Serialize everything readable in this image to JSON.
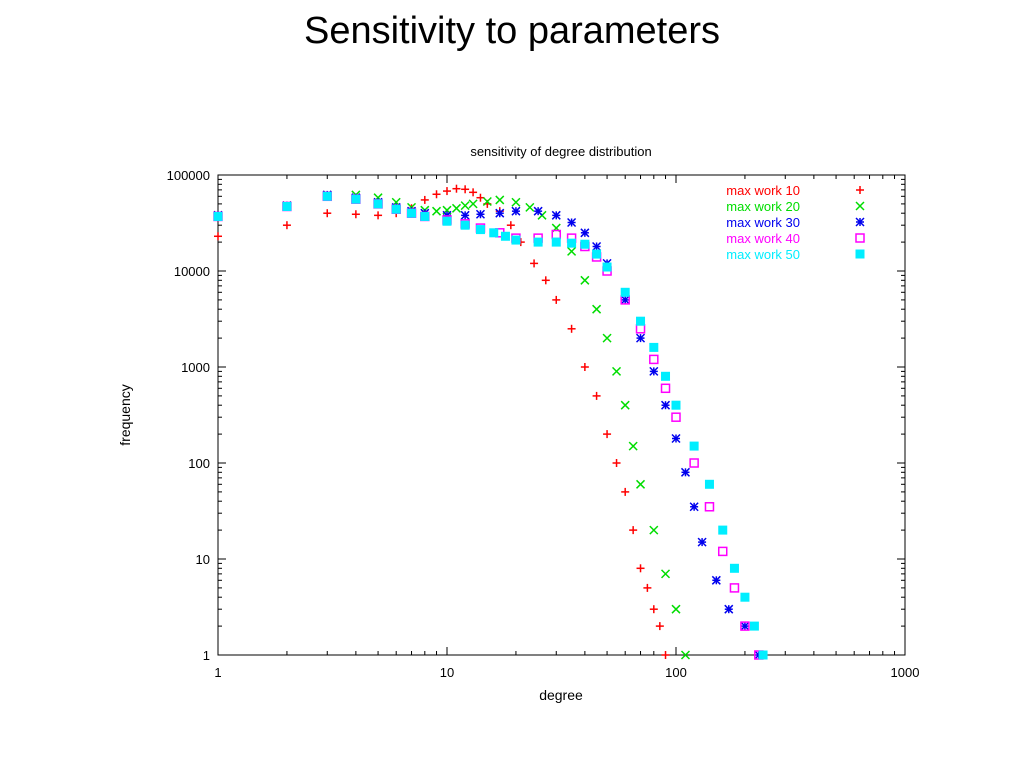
{
  "slide": {
    "title": "Sensitivity to parameters"
  },
  "chart_data": {
    "type": "scatter",
    "title": "sensitivity of degree distribution",
    "xlabel": "degree",
    "ylabel": "frequency",
    "xscale": "log",
    "yscale": "log",
    "xlim": [
      1,
      1000
    ],
    "ylim": [
      1,
      100000
    ],
    "xticks": [
      "1",
      "10",
      "100",
      "1000"
    ],
    "yticks": [
      "1",
      "10",
      "100",
      "1000",
      "10000",
      "100000"
    ],
    "grid": false,
    "legend_position": "top-right",
    "series": [
      {
        "name": "max work 10",
        "color": "#ff0000",
        "marker": "plus",
        "x": [
          1,
          2,
          3,
          4,
          5,
          6,
          7,
          8,
          9,
          10,
          11,
          12,
          13,
          14,
          15,
          17,
          19,
          21,
          24,
          27,
          30,
          35,
          40,
          45,
          50,
          55,
          60,
          65,
          70,
          75,
          80,
          85,
          90
        ],
        "y": [
          23000,
          30000,
          40000,
          39000,
          38000,
          40000,
          45000,
          55000,
          63000,
          68000,
          72000,
          71000,
          66000,
          58000,
          50000,
          42000,
          30000,
          20000,
          12000,
          8000,
          5000,
          2500,
          1000,
          500,
          200,
          100,
          50,
          20,
          8,
          5,
          3,
          2,
          1
        ]
      },
      {
        "name": "max work 20",
        "color": "#00dd00",
        "marker": "cross",
        "x": [
          1,
          2,
          3,
          4,
          5,
          6,
          7,
          8,
          9,
          10,
          11,
          12,
          13,
          15,
          17,
          20,
          23,
          26,
          30,
          35,
          40,
          45,
          50,
          55,
          60,
          65,
          70,
          80,
          90,
          100,
          110
        ],
        "y": [
          38000,
          48000,
          62000,
          62000,
          58000,
          52000,
          46000,
          43000,
          42000,
          43000,
          45000,
          48000,
          50000,
          53000,
          55000,
          52000,
          46000,
          38000,
          28000,
          16000,
          8000,
          4000,
          2000,
          900,
          400,
          150,
          60,
          20,
          7,
          3,
          1
        ]
      },
      {
        "name": "max work 30",
        "color": "#0000ee",
        "marker": "star",
        "x": [
          1,
          2,
          3,
          4,
          5,
          6,
          7,
          8,
          10,
          12,
          14,
          17,
          20,
          25,
          30,
          35,
          40,
          45,
          50,
          60,
          70,
          80,
          90,
          100,
          110,
          120,
          130,
          150,
          170,
          200,
          230
        ],
        "y": [
          38000,
          48000,
          62000,
          58000,
          52000,
          46000,
          42000,
          40000,
          38000,
          38000,
          39000,
          40000,
          42000,
          42000,
          38000,
          32000,
          25000,
          18000,
          12000,
          5000,
          2000,
          900,
          400,
          180,
          80,
          35,
          15,
          6,
          3,
          2,
          1
        ]
      },
      {
        "name": "max work 40",
        "color": "#ff00ff",
        "marker": "open-square",
        "x": [
          1,
          2,
          3,
          4,
          5,
          6,
          7,
          8,
          10,
          12,
          14,
          17,
          20,
          25,
          30,
          35,
          40,
          45,
          50,
          60,
          70,
          80,
          90,
          100,
          120,
          140,
          160,
          180,
          200,
          230
        ],
        "y": [
          37000,
          47000,
          60000,
          56000,
          50000,
          44000,
          40000,
          37000,
          34000,
          31000,
          28000,
          25000,
          22000,
          22000,
          24000,
          22000,
          18000,
          14000,
          10000,
          5000,
          2500,
          1200,
          600,
          300,
          100,
          35,
          12,
          5,
          2,
          1
        ]
      },
      {
        "name": "max work 50",
        "color": "#00eeff",
        "marker": "filled-square",
        "x": [
          1,
          2,
          3,
          4,
          5,
          6,
          7,
          8,
          10,
          12,
          14,
          16,
          18,
          20,
          25,
          30,
          35,
          40,
          45,
          50,
          60,
          70,
          80,
          90,
          100,
          120,
          140,
          160,
          180,
          200,
          220,
          240
        ],
        "y": [
          37000,
          47000,
          60000,
          56000,
          50000,
          44000,
          40000,
          37000,
          33000,
          30000,
          27000,
          25000,
          23000,
          21000,
          20000,
          20000,
          19500,
          19000,
          15000,
          11000,
          6000,
          3000,
          1600,
          800,
          400,
          150,
          60,
          20,
          8,
          4,
          2,
          1
        ]
      }
    ]
  }
}
